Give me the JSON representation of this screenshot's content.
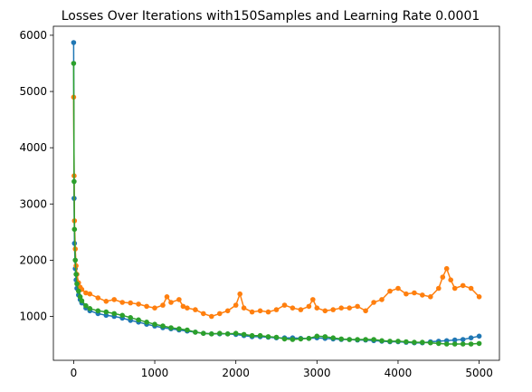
{
  "chart_data": {
    "type": "line",
    "title": "Losses Over Iterations with150Samples and Learning Rate 0.0001",
    "xlabel": "",
    "ylabel": "",
    "xlim": [
      -250,
      5250
    ],
    "ylim": [
      220,
      6160
    ],
    "xticks": [
      0,
      1000,
      2000,
      3000,
      4000,
      5000
    ],
    "yticks": [
      1000,
      2000,
      3000,
      4000,
      5000,
      6000
    ],
    "xtick_labels": [
      "0",
      "1000",
      "2000",
      "3000",
      "4000",
      "5000"
    ],
    "ytick_labels": [
      "1000",
      "2000",
      "3000",
      "4000",
      "5000",
      "6000"
    ],
    "grid": false,
    "legend": "none",
    "series": [
      {
        "color": "#1f77b4",
        "marker": "circle",
        "x": [
          0,
          5,
          10,
          20,
          30,
          40,
          60,
          80,
          100,
          150,
          200,
          300,
          400,
          500,
          600,
          700,
          800,
          900,
          1000,
          1100,
          1200,
          1300,
          1400,
          1500,
          1600,
          1700,
          1800,
          1900,
          2000,
          2100,
          2200,
          2300,
          2400,
          2500,
          2600,
          2700,
          2800,
          2900,
          3000,
          3100,
          3200,
          3300,
          3400,
          3500,
          3600,
          3700,
          3800,
          3900,
          4000,
          4100,
          4200,
          4300,
          4400,
          4500,
          4600,
          4700,
          4800,
          4900,
          5000
        ],
        "y": [
          5870,
          3100,
          2300,
          1850,
          1650,
          1500,
          1380,
          1300,
          1240,
          1150,
          1100,
          1050,
          1020,
          1000,
          970,
          930,
          900,
          860,
          830,
          800,
          780,
          760,
          740,
          720,
          700,
          690,
          690,
          690,
          680,
          660,
          640,
          640,
          630,
          620,
          620,
          620,
          610,
          610,
          620,
          610,
          600,
          590,
          590,
          580,
          580,
          570,
          560,
          550,
          550,
          540,
          530,
          530,
          550,
          560,
          570,
          580,
          590,
          620,
          650
        ]
      },
      {
        "color": "#ff7f0e",
        "marker": "circle",
        "x": [
          0,
          5,
          10,
          20,
          30,
          40,
          60,
          80,
          100,
          150,
          200,
          300,
          400,
          500,
          600,
          700,
          800,
          900,
          1000,
          1100,
          1150,
          1200,
          1300,
          1350,
          1400,
          1500,
          1600,
          1700,
          1800,
          1900,
          2000,
          2050,
          2100,
          2200,
          2300,
          2400,
          2500,
          2600,
          2700,
          2800,
          2900,
          2950,
          3000,
          3100,
          3200,
          3300,
          3400,
          3500,
          3600,
          3700,
          3800,
          3900,
          4000,
          4100,
          4200,
          4300,
          4400,
          4500,
          4550,
          4600,
          4650,
          4700,
          4800,
          4900,
          5000
        ],
        "y": [
          4900,
          3500,
          2700,
          2200,
          1900,
          1750,
          1600,
          1520,
          1480,
          1420,
          1400,
          1330,
          1270,
          1300,
          1250,
          1240,
          1220,
          1180,
          1150,
          1200,
          1350,
          1250,
          1300,
          1180,
          1150,
          1120,
          1050,
          1000,
          1050,
          1100,
          1200,
          1400,
          1150,
          1080,
          1100,
          1080,
          1120,
          1200,
          1150,
          1120,
          1180,
          1300,
          1150,
          1100,
          1120,
          1150,
          1150,
          1180,
          1100,
          1250,
          1300,
          1450,
          1500,
          1400,
          1420,
          1380,
          1350,
          1500,
          1700,
          1850,
          1650,
          1500,
          1550,
          1500,
          1350
        ]
      },
      {
        "color": "#2ca02c",
        "marker": "circle",
        "x": [
          0,
          5,
          10,
          20,
          30,
          40,
          60,
          80,
          100,
          150,
          200,
          300,
          400,
          500,
          600,
          700,
          800,
          900,
          1000,
          1100,
          1200,
          1300,
          1400,
          1500,
          1600,
          1700,
          1800,
          1900,
          2000,
          2100,
          2200,
          2300,
          2400,
          2500,
          2600,
          2700,
          2800,
          2900,
          3000,
          3100,
          3200,
          3300,
          3400,
          3500,
          3600,
          3700,
          3800,
          3900,
          4000,
          4100,
          4200,
          4300,
          4400,
          4500,
          4600,
          4700,
          4800,
          4900,
          5000
        ],
        "y": [
          5500,
          3400,
          2550,
          2000,
          1750,
          1580,
          1450,
          1350,
          1280,
          1190,
          1140,
          1100,
          1080,
          1050,
          1020,
          980,
          940,
          900,
          860,
          830,
          800,
          780,
          760,
          720,
          700,
          690,
          700,
          690,
          700,
          680,
          660,
          660,
          640,
          630,
          600,
          590,
          600,
          610,
          650,
          640,
          620,
          600,
          590,
          590,
          590,
          590,
          570,
          560,
          560,
          550,
          540,
          540,
          530,
          520,
          510,
          510,
          510,
          510,
          520
        ]
      }
    ]
  }
}
